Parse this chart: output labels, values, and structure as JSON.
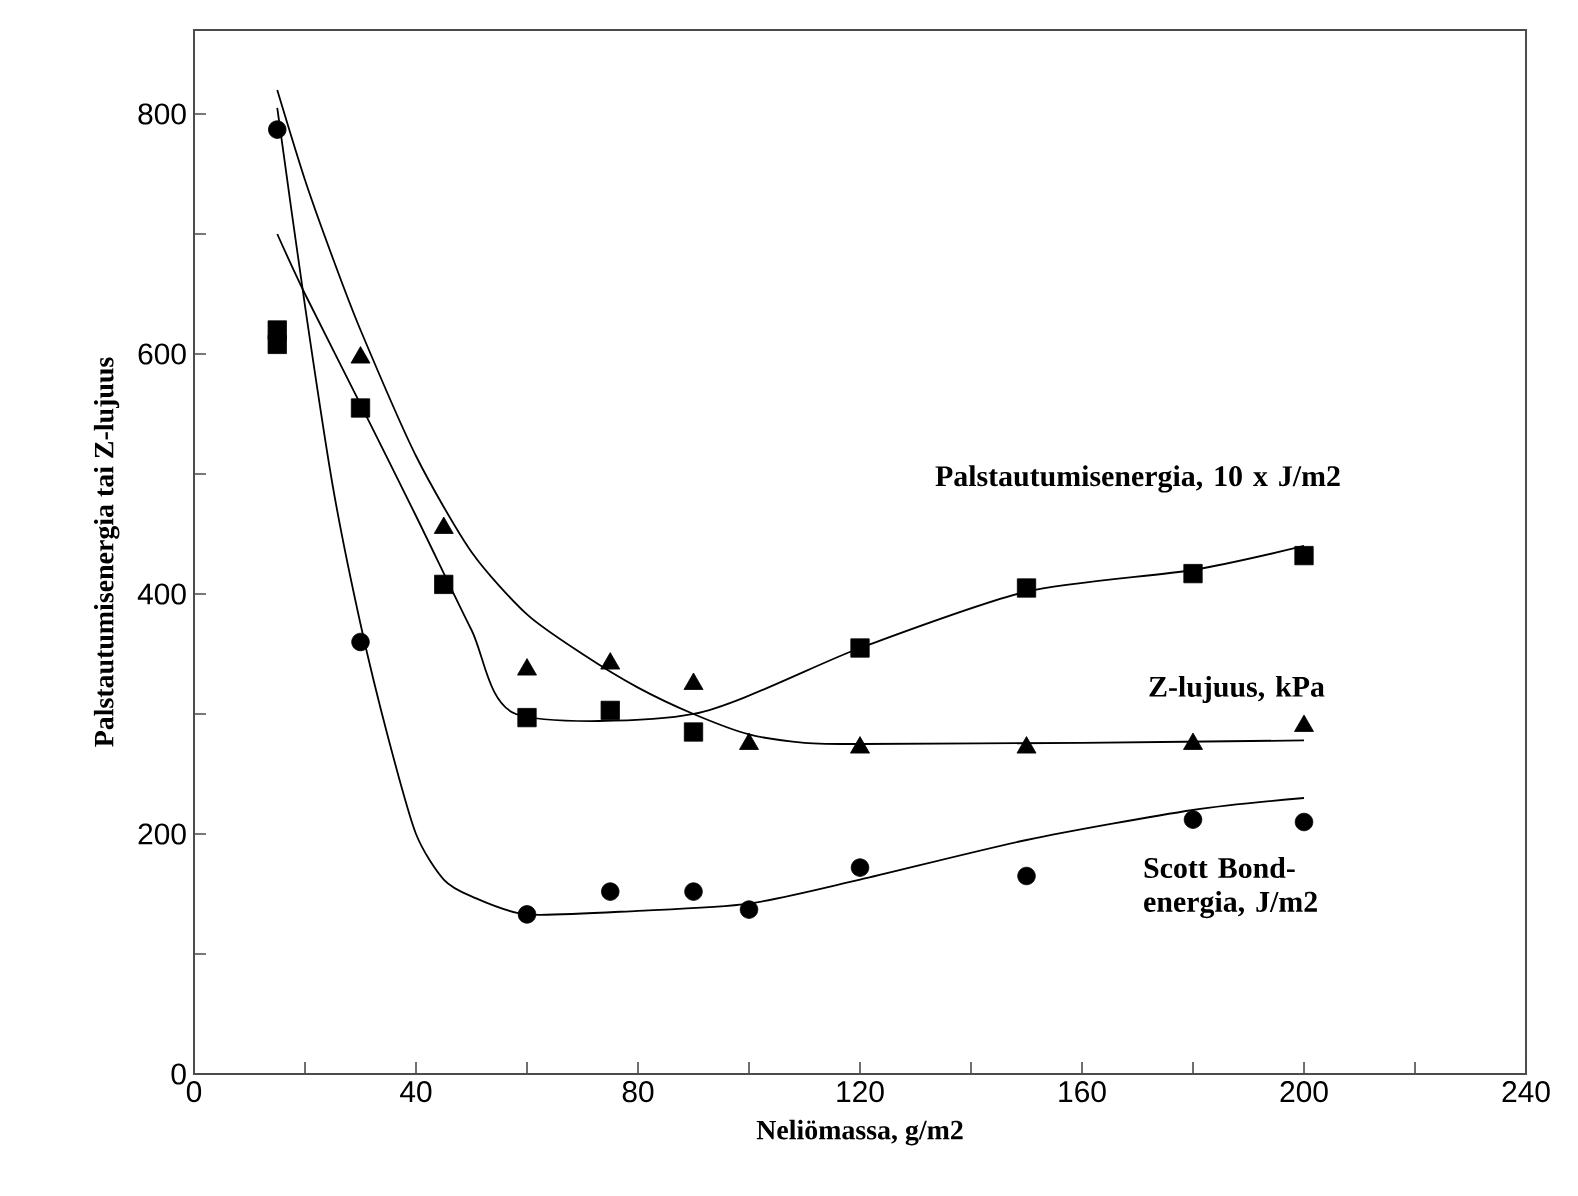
{
  "chart_data": {
    "type": "scatter",
    "xlabel": "Neliömassa, g/m2",
    "ylabel": "Palstautumisenergia tai Z-lujuus",
    "xlim": [
      0,
      240
    ],
    "ylim": [
      0,
      870
    ],
    "xticks": [
      0,
      {
        "value": 20,
        "label": null
      },
      40,
      {
        "value": 60,
        "label": null
      },
      80,
      {
        "value": 100,
        "label": null
      },
      120,
      {
        "value": 140,
        "label": null
      },
      160,
      {
        "value": 180,
        "label": null
      },
      200,
      {
        "value": 220,
        "label": null
      },
      240
    ],
    "yticks": [
      0,
      {
        "value": 100,
        "label": null
      },
      200,
      {
        "value": 300,
        "label": null
      },
      400,
      {
        "value": 500,
        "label": null
      },
      600,
      {
        "value": 700,
        "label": null
      },
      800
    ],
    "grid": false,
    "series": [
      {
        "name": "Palstautumisenergia, 10 x J/m2",
        "marker": "square",
        "color": "#000000",
        "x": [
          15,
          15,
          30,
          45,
          60,
          75,
          90,
          120,
          150,
          180,
          200
        ],
        "values": [
          620,
          608,
          555,
          408,
          297,
          303,
          285,
          355,
          405,
          417,
          432
        ]
      },
      {
        "name": "Z-lujuus, kPa",
        "marker": "triangle",
        "color": "#000000",
        "x": [
          30,
          45,
          60,
          75,
          90,
          100,
          120,
          150,
          180,
          200
        ],
        "values": [
          597,
          455,
          337,
          342,
          325,
          275,
          272,
          272,
          275,
          290
        ]
      },
      {
        "name": "Scott Bond-energia, J/m2",
        "marker": "circle",
        "color": "#000000",
        "x": [
          15,
          30,
          60,
          75,
          90,
          100,
          120,
          150,
          180,
          200
        ],
        "values": [
          787,
          360,
          133,
          152,
          152,
          137,
          172,
          165,
          212,
          210
        ]
      },
      {
        "type": "line",
        "marker": "none",
        "color": "#000000",
        "x": [
          15,
          20,
          30,
          40,
          50,
          58,
          90,
          120,
          150,
          180,
          200
        ],
        "values": [
          700,
          650,
          558,
          465,
          370,
          300,
          300,
          355,
          402,
          420,
          440
        ]
      },
      {
        "type": "line",
        "marker": "none",
        "color": "#000000",
        "x": [
          15,
          20,
          25,
          30,
          40,
          50,
          60,
          70,
          80,
          90,
          100,
          110,
          120,
          160,
          200
        ],
        "values": [
          820,
          745,
          680,
          620,
          515,
          435,
          383,
          350,
          322,
          300,
          283,
          276,
          275,
          276,
          278
        ]
      },
      {
        "type": "line",
        "marker": "none",
        "color": "#000000",
        "x": [
          15,
          20,
          25,
          30,
          35,
          40,
          45,
          50,
          60,
          80,
          100,
          120,
          150,
          180,
          200
        ],
        "values": [
          805,
          640,
          490,
          375,
          280,
          200,
          162,
          148,
          133,
          136,
          142,
          162,
          195,
          220,
          230
        ]
      }
    ]
  }
}
